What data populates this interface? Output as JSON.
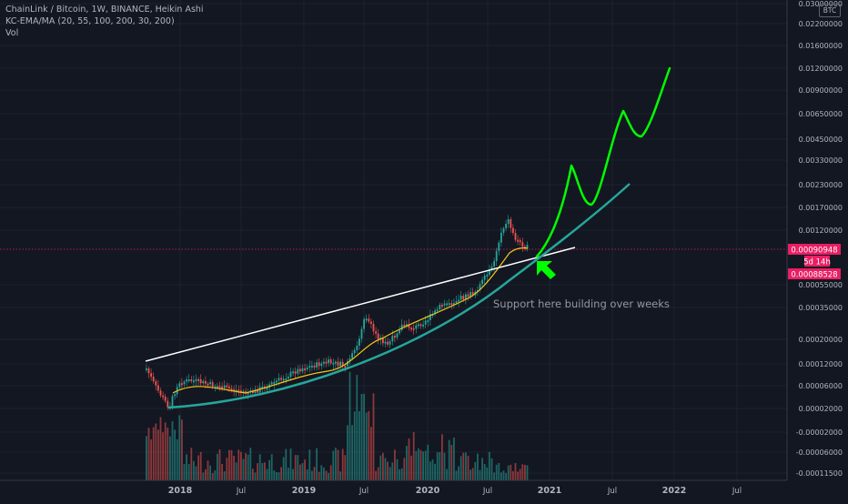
{
  "header": {
    "title": "ChainLink / Bitcoin, 1W, BINANCE, Heikin Ashi",
    "indicator": "KC-EMA/MA (20, 55, 100, 200, 30, 200)",
    "volume_label": "Vol",
    "currency_badge": "BTC"
  },
  "annotation": {
    "text": "Support here building over weeks"
  },
  "price_tags": {
    "current_price": "0.00090948",
    "countdown": "5d 14h",
    "ma_price": "0.00088528"
  },
  "colors": {
    "background": "#131722",
    "up_candle": "#26a69a",
    "down_candle": "#ef5350",
    "price_tag": "#e91e63",
    "projection": "#00ff00",
    "support_curve": "#26a69a",
    "resistance_line": "#ffffff",
    "ma_line": "#f5c518"
  },
  "chart_data": {
    "type": "candlestick",
    "title": "ChainLink / Bitcoin, 1W, BINANCE, Heikin Ashi",
    "y_scale": "log",
    "y_tick_labels": [
      "0.03000000",
      "0.02200000",
      "0.01600000",
      "0.01200000",
      "0.00900000",
      "0.00650000",
      "0.00450000",
      "0.00330000",
      "0.00230000",
      "0.00170000",
      "0.00120000",
      "0.00055000",
      "0.00035000",
      "0.00020000",
      "0.00012000",
      "0.00006000",
      "0.00002000",
      "-0.00002000",
      "-0.00006000",
      "-0.00011500"
    ],
    "x_tick_labels": [
      "2018",
      "Jul",
      "2019",
      "Jul",
      "2020",
      "Jul",
      "2021",
      "Jul",
      "2022",
      "Jul"
    ],
    "x_range": [
      "2017-09",
      "2022-12"
    ],
    "grid": true,
    "current_price": 0.00090948,
    "ma_price": 0.00088528,
    "series": [
      {
        "kind": "candles",
        "points": [
          [
            "2017-09",
            0.00012
          ],
          [
            "2017-11",
            5e-05
          ],
          [
            "2017-12",
            3.5e-05
          ],
          [
            "2018-01",
            8.5e-05
          ],
          [
            "2018-03",
            7.5e-05
          ],
          [
            "2018-05",
            7e-05
          ],
          [
            "2018-07",
            5.5e-05
          ],
          [
            "2018-09",
            5.5e-05
          ],
          [
            "2018-11",
            7e-05
          ],
          [
            "2019-01",
            7.5e-05
          ],
          [
            "2019-03",
            0.0001
          ],
          [
            "2019-05",
            0.00013
          ],
          [
            "2019-06",
            0.00035
          ],
          [
            "2019-07",
            0.00028
          ],
          [
            "2019-09",
            0.00018
          ],
          [
            "2019-11",
            0.00025
          ],
          [
            "2020-01",
            0.00032
          ],
          [
            "2020-03",
            0.00035
          ],
          [
            "2020-05",
            0.00045
          ],
          [
            "2020-07",
            0.00065
          ],
          [
            "2020-08",
            0.0016
          ],
          [
            "2020-09",
            0.0012
          ],
          [
            "2020-10",
            0.00091
          ]
        ]
      }
    ],
    "annotations": [
      "Support here building over weeks"
    ]
  }
}
